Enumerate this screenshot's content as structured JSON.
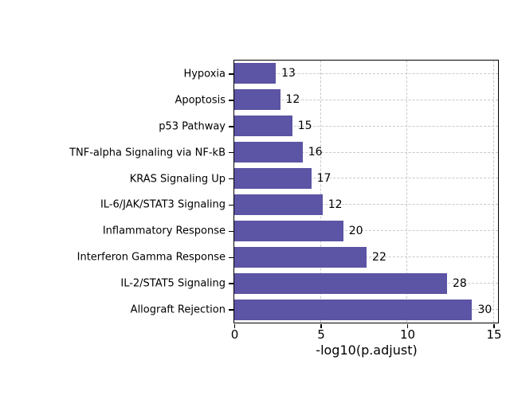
{
  "figure": {
    "background": "#ffffff"
  },
  "chart_data": {
    "type": "bar",
    "orientation": "horizontal",
    "title": "",
    "xlabel": "-log10(p.adjust)",
    "ylabel": "",
    "categories": [
      "Hypoxia",
      "Apoptosis",
      "p53 Pathway",
      "TNF-alpha Signaling via NF-kB",
      "KRAS Signaling Up",
      "IL-6/JAK/STAT3 Signaling",
      "Inflammatory Response",
      "Interferon Gamma Response",
      "IL-2/STAT5 Signaling",
      "Allograft Rejection"
    ],
    "values": [
      2.4,
      2.65,
      3.35,
      3.95,
      4.45,
      5.1,
      6.3,
      7.65,
      12.3,
      13.75
    ],
    "bar_labels": [
      13,
      12,
      15,
      16,
      17,
      12,
      20,
      22,
      28,
      30
    ],
    "xlim": [
      0,
      15.25
    ],
    "xticks": [
      0,
      5,
      10,
      15
    ],
    "grid": "dashed, horizontal and vertical",
    "legend": "none",
    "bar_color": "#5C54A4",
    "grid_color": "#C9C9C9",
    "frame_color": "#000000",
    "text_color": "#000000"
  }
}
